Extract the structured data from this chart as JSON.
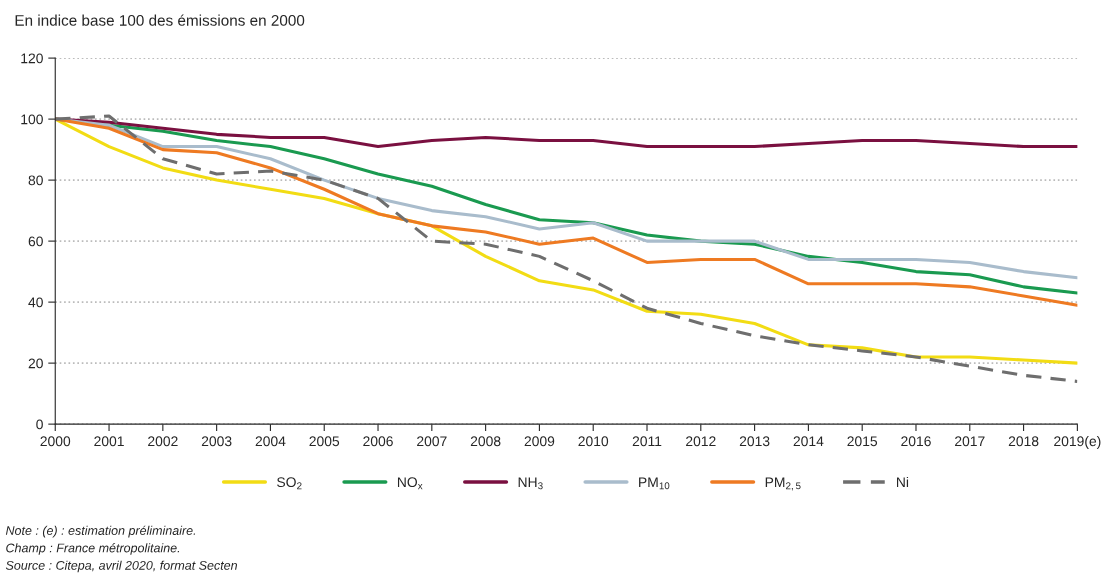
{
  "chart_data": {
    "type": "line",
    "title": "En indice base 100 des émissions en 2000",
    "categories": [
      "2000",
      "2001",
      "2002",
      "2003",
      "2004",
      "2005",
      "2006",
      "2007",
      "2008",
      "2009",
      "2010",
      "2011",
      "2012",
      "2013",
      "2014",
      "2015",
      "2016",
      "2017",
      "2018",
      "2019(e)"
    ],
    "series": [
      {
        "name": "SO$_{2}$",
        "color": "#f2dc14",
        "values": [
          100,
          91,
          84,
          80,
          77,
          74,
          69,
          65,
          55,
          47,
          44,
          37,
          36,
          33,
          26,
          25,
          22,
          22,
          21,
          20
        ]
      },
      {
        "name": "NO$_{x}$",
        "color": "#1a9a50",
        "values": [
          100,
          98,
          96,
          93,
          91,
          87,
          82,
          78,
          72,
          67,
          66,
          62,
          60,
          59,
          55,
          53,
          50,
          49,
          45,
          43
        ]
      },
      {
        "name": "NH$_{3}$",
        "color": "#7a1040",
        "values": [
          100,
          99,
          97,
          95,
          94,
          94,
          91,
          93,
          94,
          93,
          93,
          91,
          91,
          91,
          92,
          93,
          93,
          92,
          91,
          91
        ]
      },
      {
        "name": "PM$_{10}$",
        "color": "#a9bccc",
        "values": [
          100,
          98,
          91,
          91,
          87,
          80,
          74,
          70,
          68,
          64,
          66,
          60,
          60,
          60,
          54,
          54,
          54,
          53,
          50,
          48
        ]
      },
      {
        "name": "PM$_{2,5}$",
        "color": "#ee7a22",
        "values": [
          100,
          97,
          90,
          89,
          84,
          77,
          69,
          65,
          63,
          59,
          61,
          53,
          54,
          54,
          46,
          46,
          46,
          45,
          42,
          39
        ]
      },
      {
        "name": "Ni",
        "color": "#6e6e6e",
        "line_style": "dashed",
        "values": [
          100,
          101,
          87,
          82,
          83,
          80,
          74,
          60,
          59,
          55,
          47,
          38,
          33,
          29,
          26,
          24,
          22,
          19,
          16,
          14
        ]
      }
    ],
    "ylim": [
      0,
      120
    ],
    "yticks": [
      0,
      20,
      40,
      60,
      80,
      100,
      120
    ],
    "grid": "y",
    "legend": "bottom",
    "annotations": [
      "Note : (e) : estimation préliminaire.",
      "Champ : France métropolitaine.",
      "Source : Citepa, avril 2020, format Secten"
    ]
  }
}
